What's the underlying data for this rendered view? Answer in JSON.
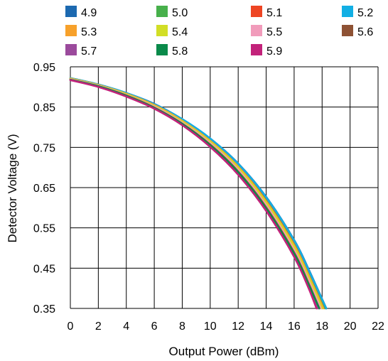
{
  "chart_data": {
    "type": "line",
    "xlabel": "Output Power (dBm)",
    "ylabel": "Detector Voltage (V)",
    "xlim": [
      0,
      22
    ],
    "ylim": [
      0.35,
      0.95
    ],
    "xticks": [
      0,
      2,
      4,
      6,
      8,
      10,
      12,
      14,
      16,
      18,
      20,
      22
    ],
    "yticks": [
      0.35,
      0.45,
      0.55,
      0.65,
      0.75,
      0.85,
      0.95
    ],
    "grid": true,
    "legend_position": "top",
    "series": [
      {
        "name": "4.9",
        "color": "#1c69b0",
        "x": [
          0,
          2,
          4,
          6,
          8,
          10,
          12,
          14,
          16,
          17,
          18.3
        ],
        "y": [
          0.922,
          0.906,
          0.885,
          0.858,
          0.82,
          0.772,
          0.71,
          0.627,
          0.52,
          0.45,
          0.35
        ]
      },
      {
        "name": "5.0",
        "color": "#47b04b",
        "x": [
          0,
          2,
          4,
          6,
          8,
          10,
          12,
          14,
          16,
          17,
          18.2
        ],
        "y": [
          0.922,
          0.906,
          0.884,
          0.856,
          0.818,
          0.769,
          0.706,
          0.622,
          0.515,
          0.443,
          0.35
        ]
      },
      {
        "name": "5.1",
        "color": "#ee4523",
        "x": [
          0,
          2,
          4,
          6,
          8,
          10,
          12,
          14,
          16,
          17,
          18.3
        ],
        "y": [
          0.921,
          0.905,
          0.883,
          0.856,
          0.818,
          0.77,
          0.708,
          0.625,
          0.518,
          0.447,
          0.35
        ]
      },
      {
        "name": "5.2",
        "color": "#12afe4",
        "x": [
          0,
          2,
          4,
          6,
          8,
          10,
          12,
          14,
          16,
          17,
          18.3
        ],
        "y": [
          0.922,
          0.906,
          0.885,
          0.857,
          0.82,
          0.772,
          0.709,
          0.626,
          0.519,
          0.448,
          0.35
        ]
      },
      {
        "name": "5.3",
        "color": "#f7a12b",
        "x": [
          0,
          2,
          4,
          6,
          8,
          10,
          12,
          14,
          16,
          17,
          18.1
        ],
        "y": [
          0.921,
          0.905,
          0.883,
          0.855,
          0.816,
          0.766,
          0.702,
          0.616,
          0.507,
          0.435,
          0.35
        ]
      },
      {
        "name": "5.4",
        "color": "#d2de26",
        "x": [
          0,
          2,
          4,
          6,
          8,
          10,
          12,
          14,
          16,
          17,
          18.0
        ],
        "y": [
          0.92,
          0.904,
          0.882,
          0.853,
          0.814,
          0.764,
          0.699,
          0.612,
          0.502,
          0.43,
          0.35
        ]
      },
      {
        "name": "5.5",
        "color": "#f19cbb",
        "x": [
          0,
          2,
          4,
          6,
          8,
          10,
          12,
          14,
          16,
          17,
          17.9
        ],
        "y": [
          0.919,
          0.903,
          0.88,
          0.851,
          0.811,
          0.76,
          0.694,
          0.606,
          0.495,
          0.422,
          0.35
        ]
      },
      {
        "name": "5.6",
        "color": "#8e5234",
        "x": [
          0,
          2,
          4,
          6,
          8,
          10,
          12,
          14,
          16,
          17,
          17.8
        ],
        "y": [
          0.918,
          0.902,
          0.879,
          0.849,
          0.809,
          0.757,
          0.69,
          0.601,
          0.489,
          0.415,
          0.35
        ]
      },
      {
        "name": "5.7",
        "color": "#9b4a9c",
        "x": [
          0,
          2,
          4,
          6,
          8,
          10,
          12,
          14,
          16,
          17,
          17.7
        ],
        "y": [
          0.917,
          0.901,
          0.877,
          0.847,
          0.806,
          0.753,
          0.685,
          0.595,
          0.482,
          0.408,
          0.35
        ]
      },
      {
        "name": "5.8",
        "color": "#0a8a4a",
        "x": [
          0,
          2,
          4,
          6,
          8,
          10,
          12,
          14,
          16,
          17,
          17.8
        ],
        "y": [
          0.918,
          0.902,
          0.878,
          0.848,
          0.808,
          0.755,
          0.688,
          0.598,
          0.486,
          0.412,
          0.35
        ]
      },
      {
        "name": "5.9",
        "color": "#c2227a",
        "x": [
          0,
          2,
          4,
          6,
          8,
          10,
          12,
          14,
          16,
          17,
          17.6
        ],
        "y": [
          0.917,
          0.9,
          0.876,
          0.846,
          0.805,
          0.751,
          0.682,
          0.592,
          0.478,
          0.403,
          0.35
        ]
      }
    ]
  }
}
